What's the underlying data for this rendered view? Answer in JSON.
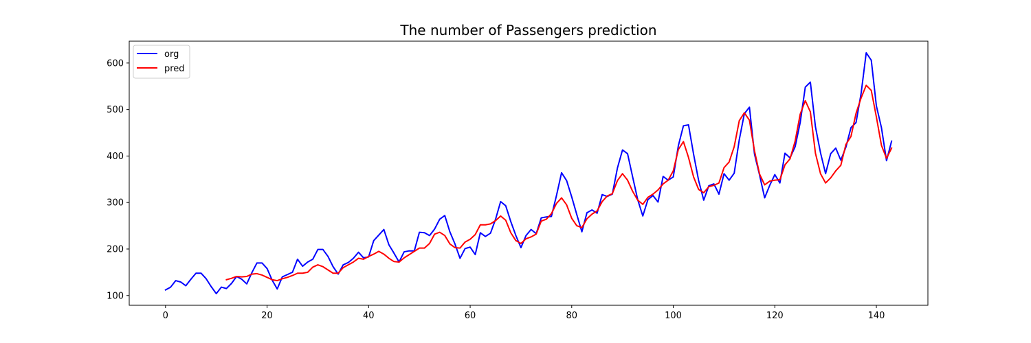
{
  "chart_data": {
    "type": "line",
    "title": "The number of Passengers prediction",
    "xlabel": "",
    "ylabel": "",
    "xlim": [
      -7.15,
      150.15
    ],
    "ylim": [
      79,
      647
    ],
    "xticks": [
      0,
      20,
      40,
      60,
      80,
      100,
      120,
      140
    ],
    "yticks": [
      100,
      200,
      300,
      400,
      500,
      600
    ],
    "legend_position": "top-left",
    "grid": false,
    "series": [
      {
        "name": "org",
        "color": "#0000ff",
        "x_start": 0,
        "values": [
          112,
          118,
          132,
          129,
          121,
          135,
          148,
          148,
          136,
          119,
          104,
          118,
          115,
          126,
          141,
          135,
          125,
          149,
          170,
          170,
          158,
          133,
          114,
          140,
          145,
          150,
          178,
          163,
          172,
          178,
          199,
          199,
          184,
          162,
          146,
          166,
          171,
          180,
          193,
          181,
          183,
          218,
          230,
          242,
          209,
          191,
          172,
          194,
          196,
          196,
          236,
          235,
          229,
          243,
          264,
          272,
          237,
          211,
          180,
          201,
          204,
          188,
          235,
          227,
          234,
          264,
          302,
          293,
          259,
          229,
          203,
          229,
          242,
          233,
          267,
          269,
          270,
          315,
          364,
          347,
          312,
          274,
          237,
          278,
          284,
          277,
          317,
          313,
          318,
          374,
          413,
          405,
          355,
          306,
          271,
          306,
          315,
          301,
          356,
          348,
          355,
          422,
          465,
          467,
          404,
          347,
          305,
          336,
          340,
          318,
          362,
          348,
          363,
          435,
          491,
          505,
          404,
          359,
          310,
          337,
          360,
          342,
          406,
          396,
          420,
          472,
          548,
          559,
          463,
          407,
          362,
          405,
          417,
          391,
          419,
          461,
          472,
          535,
          622,
          606,
          508,
          461,
          390,
          432
        ]
      },
      {
        "name": "pred",
        "color": "#ff0000",
        "x_start": 12,
        "values": [
          134,
          137,
          141,
          140,
          141,
          146,
          147,
          144,
          139,
          134,
          132,
          136,
          139,
          143,
          148,
          148,
          150,
          161,
          166,
          162,
          155,
          148,
          148,
          160,
          166,
          172,
          180,
          178,
          184,
          189,
          195,
          189,
          180,
          173,
          172,
          181,
          188,
          195,
          202,
          202,
          212,
          232,
          236,
          229,
          211,
          203,
          202,
          215,
          221,
          231,
          252,
          252,
          254,
          261,
          271,
          262,
          235,
          218,
          212,
          222,
          226,
          232,
          260,
          264,
          276,
          298,
          310,
          295,
          266,
          250,
          246,
          265,
          275,
          282,
          302,
          314,
          319,
          347,
          362,
          348,
          324,
          305,
          296,
          311,
          318,
          327,
          340,
          348,
          368,
          414,
          431,
          397,
          355,
          328,
          321,
          334,
          337,
          342,
          375,
          387,
          420,
          476,
          493,
          477,
          411,
          361,
          338,
          346,
          348,
          349,
          381,
          394,
          432,
          490,
          519,
          495,
          406,
          362,
          342,
          353,
          368,
          380,
          425,
          442,
          492,
          525,
          552,
          541,
          484,
          423,
          395,
          417
        ]
      }
    ]
  }
}
